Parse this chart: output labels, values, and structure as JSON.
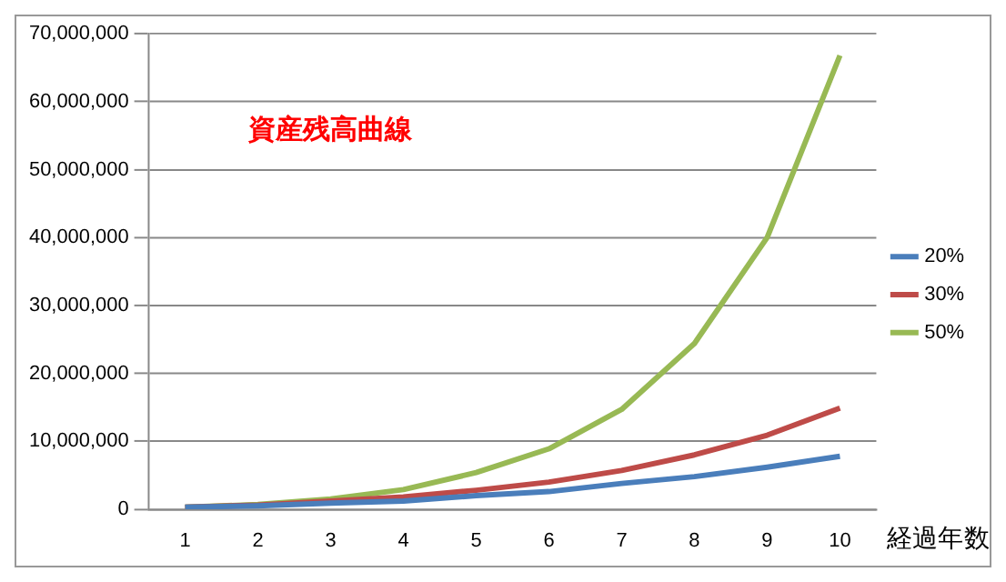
{
  "chart_data": {
    "type": "line",
    "title": "資産残高曲線",
    "xlabel": "経過年数",
    "categories": [
      "1",
      "2",
      "3",
      "4",
      "5",
      "6",
      "7",
      "8",
      "9",
      "10"
    ],
    "series": [
      {
        "name": "20%",
        "color": "#4a7ebb",
        "values": [
          300000,
          500000,
          900000,
          1200000,
          2000000,
          2600000,
          3800000,
          4800000,
          6200000,
          7800000
        ]
      },
      {
        "name": "30%",
        "color": "#be4b48",
        "values": [
          300000,
          600000,
          1200000,
          1800000,
          2800000,
          4000000,
          5700000,
          8000000,
          10900000,
          14900000
        ]
      },
      {
        "name": "50%",
        "color": "#98b954",
        "values": [
          300000,
          700000,
          1500000,
          2900000,
          5400000,
          8900000,
          14700000,
          24400000,
          40000000,
          66800000
        ]
      }
    ],
    "ylim": [
      0,
      70000000
    ],
    "yticks": [
      0,
      {
        "value": 10000000,
        "label": "10,000,000"
      },
      {
        "value": 20000000,
        "label": "20,000,000"
      },
      {
        "value": 30000000,
        "label": "30,000,000"
      },
      {
        "value": 40000000,
        "label": "40,000,000"
      },
      {
        "value": 50000000,
        "label": "50,000,000"
      },
      {
        "value": 60000000,
        "label": "60,000,000"
      },
      {
        "value": 70000000,
        "label": "70,000,000"
      }
    ],
    "grid": "y",
    "legend": "right",
    "marker": "none",
    "line_style": "solid"
  }
}
